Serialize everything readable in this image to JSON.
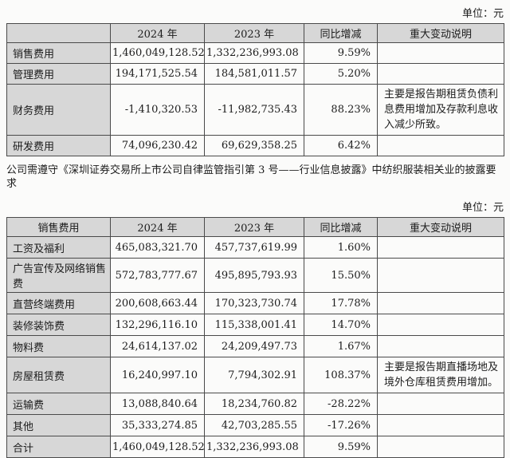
{
  "page": {
    "unit_label": "单位：元",
    "paragraph": "公司需遵守《深圳证券交易所上市公司自律监管指引第 3 号——行业信息披露》中纺织服装相关业的披露要求"
  },
  "table1": {
    "headers": [
      "",
      "2024 年",
      "2023 年",
      "同比增减",
      "重大变动说明"
    ],
    "rows": [
      {
        "label": "销售费用",
        "y2024": "1,460,049,128.52",
        "y2023": "1,332,236,993.08",
        "change": "9.59%",
        "note": ""
      },
      {
        "label": "管理费用",
        "y2024": "194,171,525.54",
        "y2023": "184,581,011.57",
        "change": "5.20%",
        "note": ""
      },
      {
        "label": "财务费用",
        "y2024": "-1,410,320.53",
        "y2023": "-11,982,735.43",
        "change": "88.23%",
        "note": "主要是报告期租赁负债利息费用增加及存款利息收入减少所致。"
      },
      {
        "label": "研发费用",
        "y2024": "74,096,230.42",
        "y2023": "69,629,358.25",
        "change": "6.42%",
        "note": ""
      }
    ]
  },
  "table2": {
    "headers": [
      "销售费用",
      "2024 年",
      "2023 年",
      "同比增减",
      "重大变动说明"
    ],
    "rows": [
      {
        "label": "工资及福利",
        "y2024": "465,083,321.70",
        "y2023": "457,737,619.99",
        "change": "1.60%",
        "note": ""
      },
      {
        "label": "广告宣传及网络销售费",
        "y2024": "572,783,777.67",
        "y2023": "495,895,793.93",
        "change": "15.50%",
        "note": ""
      },
      {
        "label": "直营终端费用",
        "y2024": "200,608,663.44",
        "y2023": "170,323,730.74",
        "change": "17.78%",
        "note": ""
      },
      {
        "label": "装修装饰费",
        "y2024": "132,296,116.10",
        "y2023": "115,338,001.41",
        "change": "14.70%",
        "note": ""
      },
      {
        "label": "物料费",
        "y2024": "24,614,137.02",
        "y2023": "24,209,497.73",
        "change": "1.67%",
        "note": ""
      },
      {
        "label": "房屋租赁费",
        "y2024": "16,240,997.10",
        "y2023": "7,794,302.91",
        "change": "108.37%",
        "note": "主要是报告期直播场地及境外仓库租赁费用增加。"
      },
      {
        "label": "运输费",
        "y2024": "13,088,840.64",
        "y2023": "18,234,760.82",
        "change": "-28.22%",
        "note": ""
      },
      {
        "label": "其他",
        "y2024": "35,333,274.85",
        "y2023": "42,703,285.55",
        "change": "-17.26%",
        "note": ""
      },
      {
        "label": "合计",
        "y2024": "1,460,049,128.52",
        "y2023": "1,332,236,993.08",
        "change": "9.59%",
        "note": ""
      }
    ]
  }
}
